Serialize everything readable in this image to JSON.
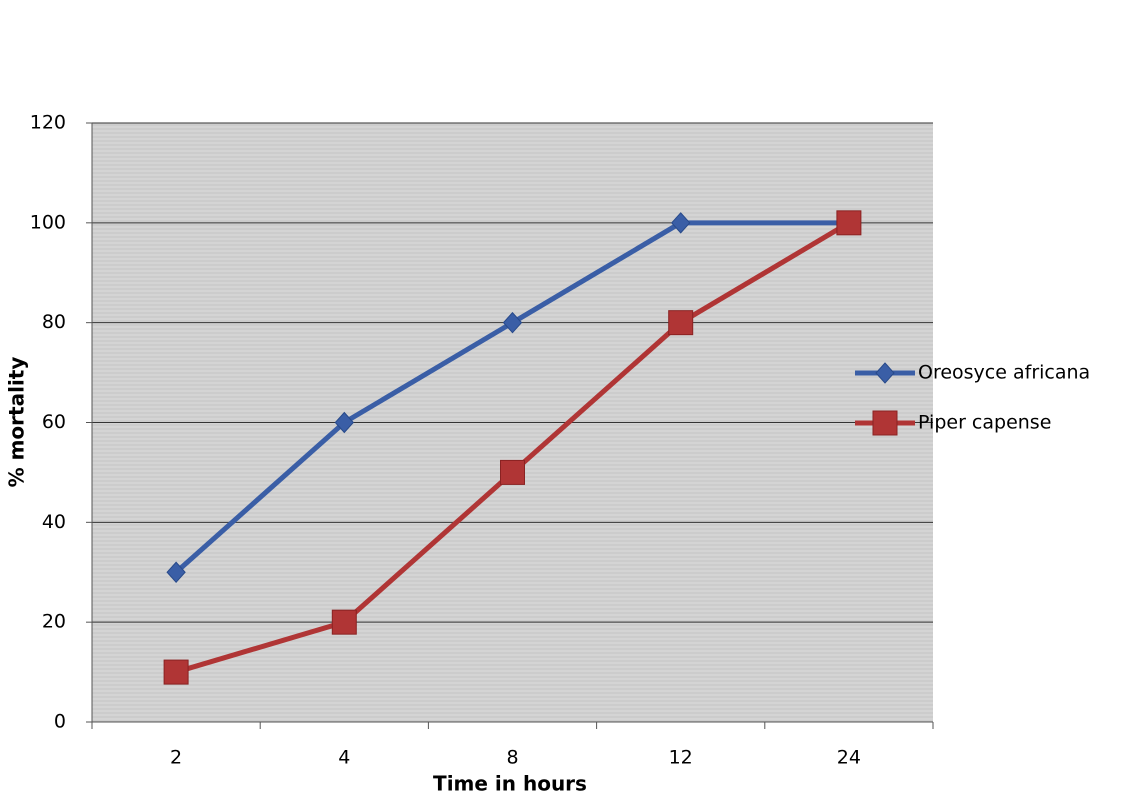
{
  "chart_data": {
    "type": "line",
    "x_label": "Time in hours",
    "y_label": "% mortality",
    "categories": [
      "2",
      "4",
      "8",
      "12",
      "24"
    ],
    "series": [
      {
        "name": "Oreosyce africana",
        "color": "#3a5ea6",
        "marker": "diamond",
        "values": [
          30,
          60,
          80,
          100,
          100
        ]
      },
      {
        "name": "Piper capense",
        "color": "#b03535",
        "marker": "square",
        "values": [
          10,
          20,
          50,
          80,
          100
        ]
      }
    ],
    "ylim": [
      0,
      120
    ],
    "yticks": [
      0,
      20,
      40,
      60,
      80,
      100,
      120
    ],
    "grid": true,
    "legend": "right"
  }
}
